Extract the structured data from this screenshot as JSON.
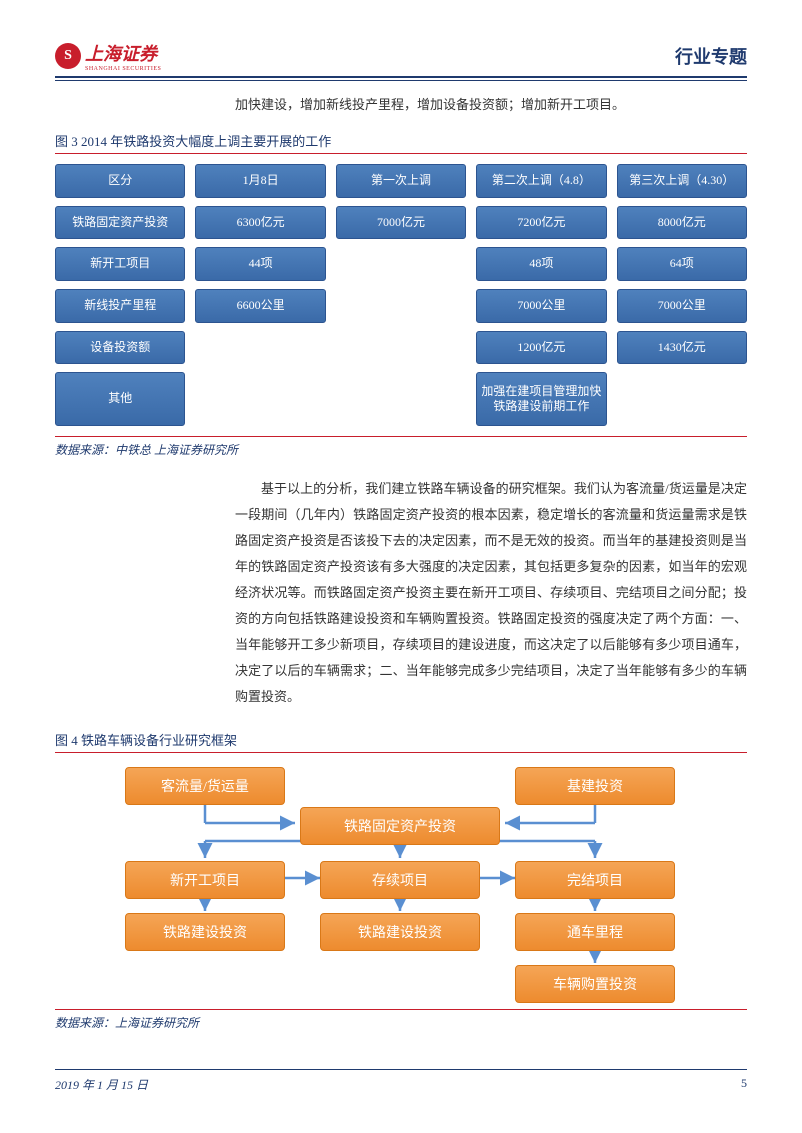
{
  "header": {
    "logo_text": "上海证券",
    "logo_sub": "SHANGHAI SECURITIES",
    "doc_type": "行业专题"
  },
  "intro": "加快建设，增加新线投产里程，增加设备投资额；增加新开工项目。",
  "fig3": {
    "title": "图 3 2014 年铁路投资大幅度上调主要开展的工作",
    "rows": [
      [
        "区分",
        "1月8日",
        "第一次上调",
        "第二次上调（4.8）",
        "第三次上调（4.30）"
      ],
      [
        "铁路固定资产投资",
        "6300亿元",
        "7000亿元",
        "7200亿元",
        "8000亿元"
      ],
      [
        "新开工项目",
        "44项",
        "",
        "48项",
        "64项"
      ],
      [
        "新线投产里程",
        "6600公里",
        "",
        "7000公里",
        "7000公里"
      ],
      [
        "设备投资额",
        "",
        "",
        "1200亿元",
        "1430亿元"
      ],
      [
        "其他",
        "",
        "",
        "加强在建项目管理加快铁路建设前期工作",
        ""
      ]
    ],
    "source": "数据来源：中铁总 上海证券研究所",
    "cell_bg": "#4f81bd",
    "cell_border": "#2c5490"
  },
  "para": "基于以上的分析，我们建立铁路车辆设备的研究框架。我们认为客流量/货运量是决定一段期间（几年内）铁路固定资产投资的根本因素，稳定增长的客流量和货运量需求是铁路固定资产投资是否该投下去的决定因素，而不是无效的投资。而当年的基建投资则是当年的铁路固定资产投资该有多大强度的决定因素，其包括更多复杂的因素，如当年的宏观经济状况等。而铁路固定资产投资主要在新开工项目、存续项目、完结项目之间分配；投资的方向包括铁路建设投资和车辆购置投资。铁路固定投资的强度决定了两个方面：一、当年能够开工多少新项目，存续项目的建设进度，而这决定了以后能够有多少项目通车，决定了以后的车辆需求；二、当年能够完成多少完结项目，决定了当年能够有多少的车辆购置投资。",
  "fig4": {
    "title": "图 4 铁路车辆设备行业研究框架",
    "boxes": {
      "top_left": "客流量/货运量",
      "top_right": "基建投资",
      "mid": "铁路固定资产投资",
      "row3_1": "新开工项目",
      "row3_2": "存续项目",
      "row3_3": "完结项目",
      "row4_1": "铁路建设投资",
      "row4_2": "铁路建设投资",
      "row4_3": "通车里程",
      "row5_3": "车辆购置投资"
    },
    "source": "数据来源：上海证券研究所",
    "box_bg": "#ed8b2e",
    "box_border": "#d97817",
    "arrow_color": "#5a8fd1"
  },
  "footer": {
    "date": "2019 年 1 月 15 日",
    "page": "5"
  }
}
